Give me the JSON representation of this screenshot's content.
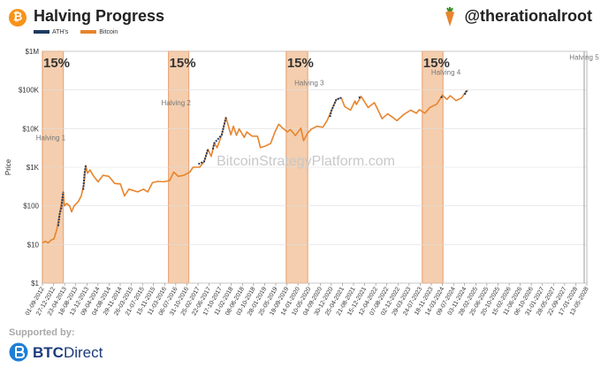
{
  "header": {
    "title": "Halving Progress",
    "handle": "@therationalroot",
    "btc_symbol": "₿"
  },
  "legend": [
    {
      "label": "ATH's",
      "color": "#1f3a63"
    },
    {
      "label": "Bitcoin",
      "color": "#e8842c"
    }
  ],
  "footer": {
    "supported_by": "Supported by:",
    "brand_bold": "BTC",
    "brand_rest": "Direct"
  },
  "chart_data": {
    "type": "line",
    "ylabel": "Price",
    "yscale": "log",
    "ylim": [
      1,
      1000000
    ],
    "y_ticks": [
      "$1",
      "$10",
      "$100",
      "$1K",
      "$10K",
      "$100K",
      "$1M"
    ],
    "x_range": [
      "2012-09-01",
      "2028-05-13"
    ],
    "x_tick_labels": [
      "01-09-2012",
      "27-12-2012",
      "23-04-2013",
      "18-08-2013",
      "13-12-2013",
      "09-04-2014",
      "04-08-2014",
      "29-11-2014",
      "26-03-2015",
      "21-07-2015",
      "15-11-2015",
      "11-03-2016",
      "06-07-2016",
      "31-10-2016",
      "25-02-2017",
      "22-06-2017",
      "17-10-2017",
      "11-02-2018",
      "08-06-2018",
      "03-10-2018",
      "28-01-2019",
      "25-05-2019",
      "19-09-2019",
      "14-01-2020",
      "10-05-2020",
      "04-09-2020",
      "30-12-2020",
      "25-04-2021",
      "21-08-2021",
      "15-12-2021",
      "12-04-2022",
      "07-08-2022",
      "02-12-2022",
      "29-03-2023",
      "24-07-2023",
      "18-11-2023",
      "14-03-2024",
      "09-07-2024",
      "03-11-2024",
      "28-02-2025",
      "25-06-2025",
      "20-10-2025",
      "15-02-2026",
      "11-06-2026",
      "06-10-2026",
      "31-01-2027",
      "28-05-2027",
      "22-09-2027",
      "17-01-2028",
      "13-05-2028"
    ],
    "halving_bands": [
      {
        "start": "2012-09-01",
        "end": "2013-04-09",
        "label": "15%"
      },
      {
        "start": "2016-04-20",
        "end": "2016-11-20",
        "label": "15%"
      },
      {
        "start": "2019-09-12",
        "end": "2020-04-25",
        "label": "15%"
      },
      {
        "start": "2023-08-15",
        "end": "2024-03-20",
        "label": "15%"
      }
    ],
    "halving_markers": [
      {
        "label": "Halving 1",
        "date": "2012-11-28",
        "price": 5000
      },
      {
        "label": "Halving 2",
        "date": "2016-07-09",
        "price": 40000
      },
      {
        "label": "Halving 3",
        "date": "2020-05-11",
        "price": 130000
      },
      {
        "label": "Halving 4",
        "date": "2024-04-20",
        "price": 250000
      },
      {
        "label": "Halving 5",
        "date": "2028-04-15",
        "price": 600000
      }
    ],
    "watermark": "BitcoinStrategyPlatform.com",
    "series": [
      {
        "name": "Bitcoin",
        "color": "#e8842c",
        "points": [
          [
            "2012-09-01",
            11
          ],
          [
            "2012-10-01",
            12
          ],
          [
            "2012-11-01",
            11
          ],
          [
            "2012-12-01",
            13
          ],
          [
            "2013-01-01",
            14
          ],
          [
            "2013-02-01",
            25
          ],
          [
            "2013-03-01",
            60
          ],
          [
            "2013-04-09",
            230
          ],
          [
            "2013-04-20",
            100
          ],
          [
            "2013-05-15",
            115
          ],
          [
            "2013-06-15",
            100
          ],
          [
            "2013-07-05",
            70
          ],
          [
            "2013-08-01",
            100
          ],
          [
            "2013-09-15",
            130
          ],
          [
            "2013-10-15",
            180
          ],
          [
            "2013-11-15",
            400
          ],
          [
            "2013-12-01",
            1100
          ],
          [
            "2013-12-20",
            700
          ],
          [
            "2014-01-15",
            850
          ],
          [
            "2014-02-20",
            600
          ],
          [
            "2014-04-10",
            420
          ],
          [
            "2014-06-01",
            620
          ],
          [
            "2014-08-01",
            580
          ],
          [
            "2014-10-01",
            380
          ],
          [
            "2014-12-01",
            370
          ],
          [
            "2015-01-14",
            180
          ],
          [
            "2015-03-01",
            270
          ],
          [
            "2015-06-01",
            230
          ],
          [
            "2015-08-01",
            270
          ],
          [
            "2015-09-15",
            230
          ],
          [
            "2015-11-05",
            400
          ],
          [
            "2016-01-01",
            430
          ],
          [
            "2016-03-01",
            420
          ],
          [
            "2016-05-01",
            450
          ],
          [
            "2016-06-15",
            750
          ],
          [
            "2016-08-01",
            580
          ],
          [
            "2016-10-01",
            620
          ],
          [
            "2016-12-01",
            750
          ],
          [
            "2017-01-05",
            1000
          ],
          [
            "2017-03-15",
            1000
          ],
          [
            "2017-05-01",
            1400
          ],
          [
            "2017-06-10",
            2900
          ],
          [
            "2017-07-15",
            1900
          ],
          [
            "2017-08-15",
            4200
          ],
          [
            "2017-09-15",
            3200
          ],
          [
            "2017-11-01",
            6800
          ],
          [
            "2017-12-17",
            19500
          ],
          [
            "2018-02-06",
            6900
          ],
          [
            "2018-03-05",
            11500
          ],
          [
            "2018-04-06",
            6700
          ],
          [
            "2018-05-05",
            9800
          ],
          [
            "2018-06-28",
            5900
          ],
          [
            "2018-07-25",
            8200
          ],
          [
            "2018-09-15",
            6400
          ],
          [
            "2018-11-14",
            6300
          ],
          [
            "2018-12-15",
            3200
          ],
          [
            "2019-02-01",
            3500
          ],
          [
            "2019-04-01",
            4100
          ],
          [
            "2019-05-15",
            8000
          ],
          [
            "2019-06-26",
            13000
          ],
          [
            "2019-08-01",
            10500
          ],
          [
            "2019-09-25",
            8200
          ],
          [
            "2019-10-26",
            9500
          ],
          [
            "2019-12-18",
            6600
          ],
          [
            "2020-02-13",
            10300
          ],
          [
            "2020-03-13",
            4900
          ],
          [
            "2020-04-25",
            7600
          ],
          [
            "2020-06-01",
            9600
          ],
          [
            "2020-08-01",
            11500
          ],
          [
            "2020-10-01",
            10800
          ],
          [
            "2020-11-15",
            16000
          ],
          [
            "2020-12-31",
            29000
          ],
          [
            "2021-02-20",
            56000
          ],
          [
            "2021-04-14",
            63000
          ],
          [
            "2021-05-20",
            37000
          ],
          [
            "2021-07-20",
            30000
          ],
          [
            "2021-09-06",
            52000
          ],
          [
            "2021-09-20",
            42000
          ],
          [
            "2021-11-10",
            68000
          ],
          [
            "2022-01-22",
            35000
          ],
          [
            "2022-03-29",
            47000
          ],
          [
            "2022-05-12",
            28000
          ],
          [
            "2022-06-18",
            18000
          ],
          [
            "2022-08-15",
            24000
          ],
          [
            "2022-10-15",
            19000
          ],
          [
            "2022-11-21",
            16000
          ],
          [
            "2023-01-31",
            23000
          ],
          [
            "2023-04-14",
            30000
          ],
          [
            "2023-06-15",
            25000
          ],
          [
            "2023-07-15",
            31000
          ],
          [
            "2023-09-11",
            25000
          ],
          [
            "2023-11-01",
            35000
          ],
          [
            "2024-01-15",
            43000
          ],
          [
            "2024-03-14",
            73000
          ],
          [
            "2024-05-01",
            57000
          ],
          [
            "2024-06-05",
            71000
          ],
          [
            "2024-08-05",
            53000
          ],
          [
            "2024-10-01",
            62000
          ],
          [
            "2024-11-12",
            88000
          ],
          [
            "2024-12-05",
            98000
          ]
        ]
      },
      {
        "name": "ATH's",
        "color": "#1f3a63",
        "segments": [
          [
            [
              "2013-02-15",
              30
            ],
            [
              "2013-03-01",
              60
            ],
            [
              "2013-03-20",
              90
            ],
            [
              "2013-04-09",
              230
            ]
          ],
          [
            [
              "2013-11-05",
              260
            ],
            [
              "2013-11-18",
              700
            ],
            [
              "2013-12-01",
              1100
            ]
          ],
          [
            [
              "2017-03-01",
              1200
            ],
            [
              "2017-05-01",
              1400
            ],
            [
              "2017-06-10",
              2900
            ]
          ],
          [
            [
              "2017-08-01",
              2900
            ],
            [
              "2017-08-15",
              4200
            ],
            [
              "2017-11-01",
              6800
            ],
            [
              "2017-12-17",
              19500
            ]
          ],
          [
            [
              "2020-12-16",
              20000
            ],
            [
              "2020-12-31",
              29000
            ],
            [
              "2021-02-20",
              56000
            ],
            [
              "2021-04-14",
              63000
            ]
          ],
          [
            [
              "2021-10-15",
              62000
            ],
            [
              "2021-11-10",
              68000
            ]
          ],
          [
            [
              "2024-03-01",
              62000
            ],
            [
              "2024-03-14",
              73000
            ]
          ],
          [
            [
              "2024-11-06",
              75000
            ],
            [
              "2024-11-12",
              88000
            ],
            [
              "2024-12-05",
              98000
            ]
          ]
        ]
      }
    ]
  }
}
